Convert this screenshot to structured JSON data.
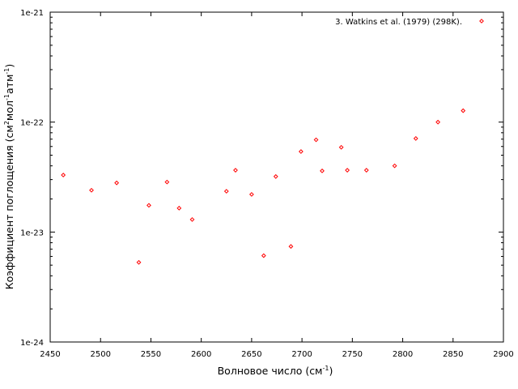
{
  "chart_data": {
    "type": "scatter",
    "xlabel": "Волновое число (см",
    "xlabel_sup": "-1",
    "xlabel_end": ")",
    "ylabel_parts": [
      "Коэффициент поглощения (см",
      "2",
      "мол",
      "-1",
      "атм",
      "-1",
      ")"
    ],
    "xlim": [
      2450,
      2900
    ],
    "ylim": [
      1e-24,
      1e-21
    ],
    "yscale": "log",
    "xticks": [
      2450,
      2500,
      2550,
      2600,
      2650,
      2700,
      2750,
      2800,
      2850,
      2900
    ],
    "xtick_labels": [
      "2450",
      "2500",
      "2550",
      "2600",
      "2650",
      "2700",
      "2750",
      "2800",
      "2850",
      "2900"
    ],
    "yticks": [
      1e-24,
      1e-23,
      1e-22,
      1e-21
    ],
    "ytick_labels": [
      "1e-24",
      "1e-23",
      "1e-22",
      "1e-21"
    ],
    "grid": false,
    "legend_position": "top-right",
    "marker_color": "#ff0000",
    "marker": "open-diamond",
    "series": [
      {
        "name": "3. Watkins et al. (1979) (298K).",
        "x": [
          2463,
          2491,
          2516,
          2538,
          2548,
          2566,
          2578,
          2591,
          2625,
          2634,
          2650,
          2662,
          2674,
          2689,
          2699,
          2714,
          2720,
          2739,
          2745,
          2764,
          2792,
          2813,
          2835,
          2860
        ],
        "y": [
          3.3e-23,
          2.4e-23,
          2.8e-23,
          5.3e-24,
          1.75e-23,
          2.85e-23,
          1.65e-23,
          1.3e-23,
          2.35e-23,
          3.65e-23,
          2.2e-23,
          6.1e-24,
          3.2e-23,
          7.4e-24,
          5.4e-23,
          6.9e-23,
          3.6e-23,
          5.9e-23,
          3.65e-23,
          3.65e-23,
          4e-23,
          7.1e-23,
          1e-22,
          1.27e-22
        ]
      }
    ]
  }
}
